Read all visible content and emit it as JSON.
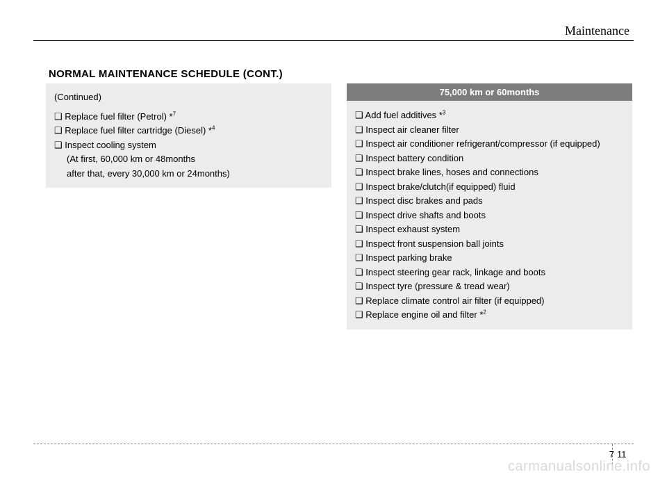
{
  "header": {
    "section": "Maintenance"
  },
  "title": "NORMAL MAINTENANCE SCHEDULE (CONT.)",
  "left_box": {
    "continued": "(Continued)",
    "items": [
      {
        "text": "❑ Replace fuel filter (Petrol) *",
        "sup": "7"
      },
      {
        "text": "❑ Replace fuel filter cartridge (Diesel) *",
        "sup": "4"
      },
      {
        "text": "❑ Inspect cooling system"
      },
      {
        "text": "(At first, 60,000 km or 48months",
        "indent": true
      },
      {
        "text": "after that, every 30,000 km or 24months)",
        "indent": true
      }
    ]
  },
  "right_box": {
    "header": "75,000 km or 60months",
    "items": [
      {
        "text": "❑ Add fuel additives *",
        "sup": "3"
      },
      {
        "text": "❑ Inspect air cleaner filter"
      },
      {
        "text": "❑ Inspect air conditioner refrigerant/compressor (if equipped)"
      },
      {
        "text": "❑ Inspect battery condition"
      },
      {
        "text": "❑ Inspect brake lines, hoses and connections"
      },
      {
        "text": "❑ Inspect brake/clutch(if equipped) fluid"
      },
      {
        "text": "❑ Inspect disc brakes and pads"
      },
      {
        "text": "❑ Inspect drive shafts and boots"
      },
      {
        "text": "❑ Inspect exhaust system"
      },
      {
        "text": "❑ Inspect front suspension ball joints"
      },
      {
        "text": "❑ Inspect parking brake"
      },
      {
        "text": "❑ Inspect steering gear rack, linkage and boots"
      },
      {
        "text": "❑ Inspect tyre (pressure & tread wear)"
      },
      {
        "text": "❑ Replace climate control air filter (if equipped)"
      },
      {
        "text": "❑ Replace engine oil and filter *",
        "sup": "2"
      }
    ]
  },
  "footer": {
    "chapter": "7",
    "page": "11",
    "watermark": "carmanualsonline.info"
  }
}
